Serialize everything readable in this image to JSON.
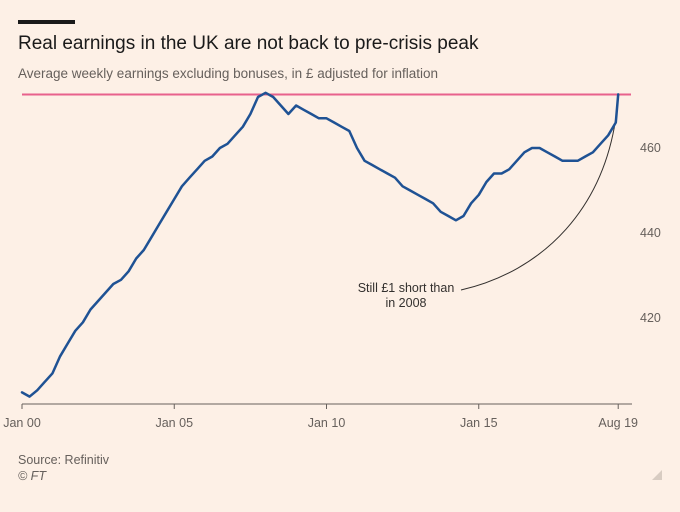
{
  "header": {
    "title": "Real earnings in the UK are not back to pre-crisis peak",
    "subtitle": "Average weekly earnings excluding bonuses, in £ adjusted for inflation"
  },
  "footer": {
    "source": "Source: Refinitiv",
    "copyright": "© FT"
  },
  "chart_data": {
    "type": "line",
    "title": "Real earnings in the UK are not back to pre-crisis peak",
    "subtitle": "Average weekly earnings excluding bonuses, in £ adjusted for inflation",
    "xlabel": "",
    "ylabel": "",
    "ylim": [
      400,
      472
    ],
    "xlim": [
      2000.0,
      2020.0
    ],
    "y_ticks": [
      420,
      440,
      460
    ],
    "x_ticks": [
      {
        "x": 2000.0,
        "label": "Jan 00"
      },
      {
        "x": 2005.0,
        "label": "Jan 05"
      },
      {
        "x": 2010.0,
        "label": "Jan 10"
      },
      {
        "x": 2015.0,
        "label": "Jan 15"
      },
      {
        "x": 2019.58,
        "label": "Aug 19"
      }
    ],
    "grid": false,
    "reference_line": {
      "y": 472.6,
      "color": "#e8618c"
    },
    "annotation": {
      "lines": [
        "Still £1 short than",
        "in 2008"
      ]
    },
    "colors": {
      "series": "#1f5294",
      "reference": "#e8618c",
      "background": "#fdf0e6"
    },
    "series": [
      {
        "name": "",
        "x": [
          2000.0,
          2000.25,
          2000.5,
          2000.75,
          2001.0,
          2001.25,
          2001.5,
          2001.75,
          2002.0,
          2002.25,
          2002.5,
          2002.75,
          2003.0,
          2003.25,
          2003.5,
          2003.75,
          2004.0,
          2004.25,
          2004.5,
          2004.75,
          2005.0,
          2005.25,
          2005.5,
          2005.75,
          2006.0,
          2006.25,
          2006.5,
          2006.75,
          2007.0,
          2007.25,
          2007.5,
          2007.75,
          2008.0,
          2008.25,
          2008.5,
          2008.75,
          2009.0,
          2009.25,
          2009.5,
          2009.75,
          2010.0,
          2010.25,
          2010.5,
          2010.75,
          2011.0,
          2011.25,
          2011.5,
          2011.75,
          2012.0,
          2012.25,
          2012.5,
          2012.75,
          2013.0,
          2013.25,
          2013.5,
          2013.75,
          2014.0,
          2014.25,
          2014.5,
          2014.75,
          2015.0,
          2015.25,
          2015.5,
          2015.75,
          2016.0,
          2016.25,
          2016.5,
          2016.75,
          2017.0,
          2017.25,
          2017.5,
          2017.75,
          2018.0,
          2018.25,
          2018.5,
          2018.75,
          2019.0,
          2019.25,
          2019.5,
          2019.58
        ],
        "values": [
          402.5,
          401.5,
          403,
          405,
          407,
          411,
          414,
          417,
          419,
          422,
          424,
          426,
          428,
          429,
          431,
          434,
          436,
          439,
          442,
          445,
          448,
          451,
          453,
          455,
          457,
          458,
          460,
          461,
          463,
          465,
          468,
          472,
          473,
          472,
          470,
          468,
          470,
          469,
          468,
          467,
          467,
          466,
          465,
          464,
          460,
          457,
          456,
          455,
          454,
          453,
          451,
          450,
          449,
          448,
          447,
          445,
          444,
          443,
          444,
          447,
          449,
          452,
          454,
          454,
          455,
          457,
          459,
          460,
          460,
          459,
          458,
          457,
          457,
          457,
          458,
          459,
          461,
          463,
          466,
          472.6
        ]
      }
    ]
  }
}
